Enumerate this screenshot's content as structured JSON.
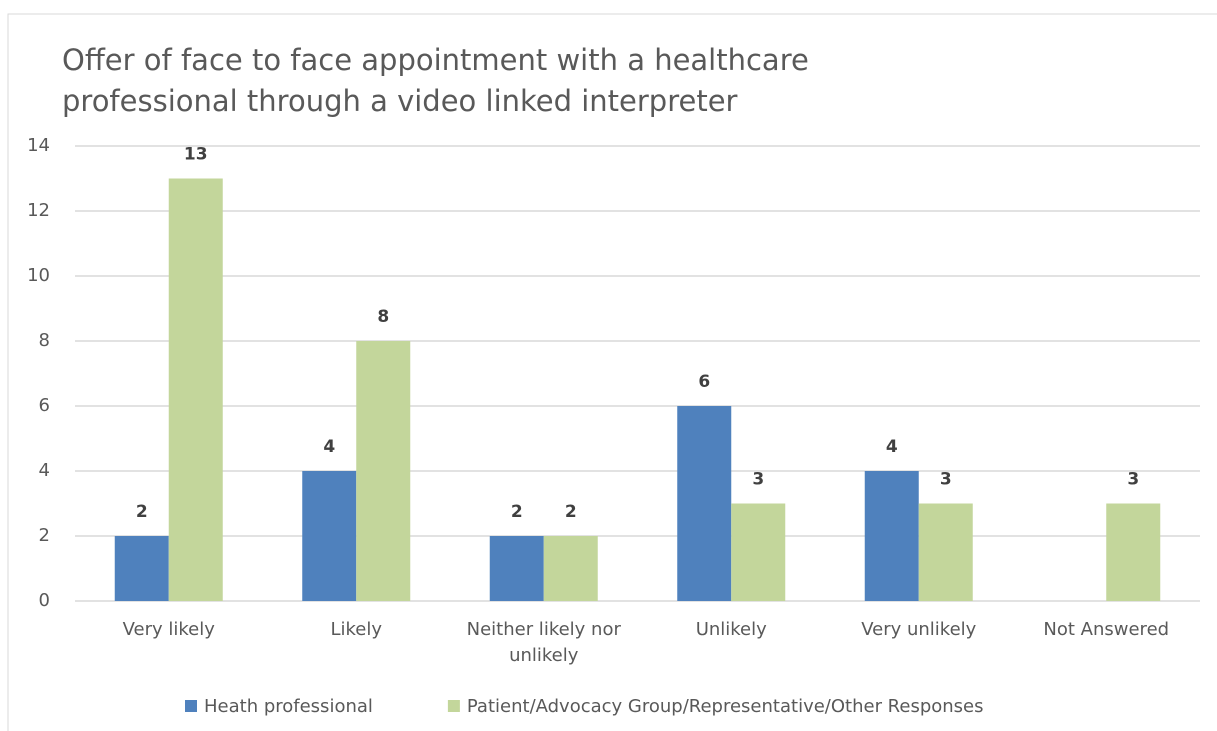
{
  "chart_data": {
    "type": "bar",
    "title": "Offer of face to face appointment with a healthcare professional through a video linked interpreter",
    "categories": [
      "Very likely",
      "Likely",
      "Neither likely nor unlikely",
      "Unlikely",
      "Very unlikely",
      "Not Answered"
    ],
    "series": [
      {
        "name": "Heath professional",
        "color": "#4f81bd",
        "values": [
          2,
          4,
          2,
          6,
          4,
          null
        ]
      },
      {
        "name": "Patient/Advocacy Group/Representative/Other Responses",
        "color": "#c3d69b",
        "values": [
          13,
          8,
          2,
          3,
          3,
          3
        ]
      }
    ],
    "ylim": [
      0,
      14
    ],
    "yticks": [
      0,
      2,
      4,
      6,
      8,
      10,
      12,
      14
    ],
    "grid": true,
    "legend": "bottom"
  }
}
